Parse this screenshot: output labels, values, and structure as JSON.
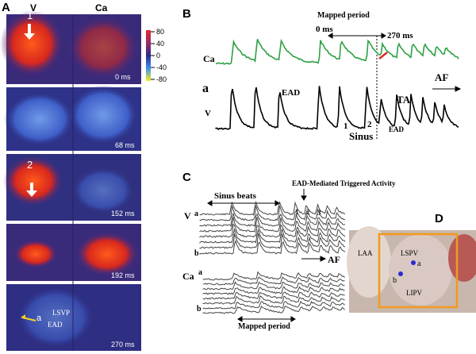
{
  "panel_a": {
    "label": "A",
    "column_labels": [
      "V",
      "Ca"
    ],
    "frames": [
      {
        "marker": "1",
        "time": "0 ms"
      },
      {
        "time": "68 ms"
      },
      {
        "marker": "2",
        "time": "152 ms"
      },
      {
        "time": "192 ms"
      },
      {
        "time": "270 ms"
      }
    ],
    "colorbar_ticks": [
      "80",
      "40",
      "0",
      "-40",
      "-80"
    ],
    "annotations": {
      "site": "LSVP",
      "point": "a",
      "ead": "EAD"
    }
  },
  "panel_b": {
    "label": "B",
    "mapped_period": "Mapped period",
    "start": "0 ms",
    "end": "270 ms",
    "ca_label": "Ca",
    "site": "a",
    "v_label": "V",
    "ead_left": "EAD",
    "ta": "TA",
    "af": "AF",
    "beat_1": "1",
    "beat_2": "2",
    "ead_right": "EAD",
    "sinus": "Sinus"
  },
  "panel_c": {
    "label": "C",
    "title": "EAD-Mediated Triggered Activity",
    "sinus_beats": "Sinus beats",
    "v_label": "V",
    "v_a": "a",
    "v_b": "b",
    "beats": [
      "1",
      "2",
      "3"
    ],
    "af": "AF",
    "ca_label": "Ca",
    "ca_a": "a",
    "ca_b": "b",
    "mapped_period": "Mapped period"
  },
  "panel_d": {
    "label": "D",
    "laa": "LAA",
    "lspv": "LSPV",
    "a": "a",
    "b": "b",
    "lipv": "LIPV"
  }
}
